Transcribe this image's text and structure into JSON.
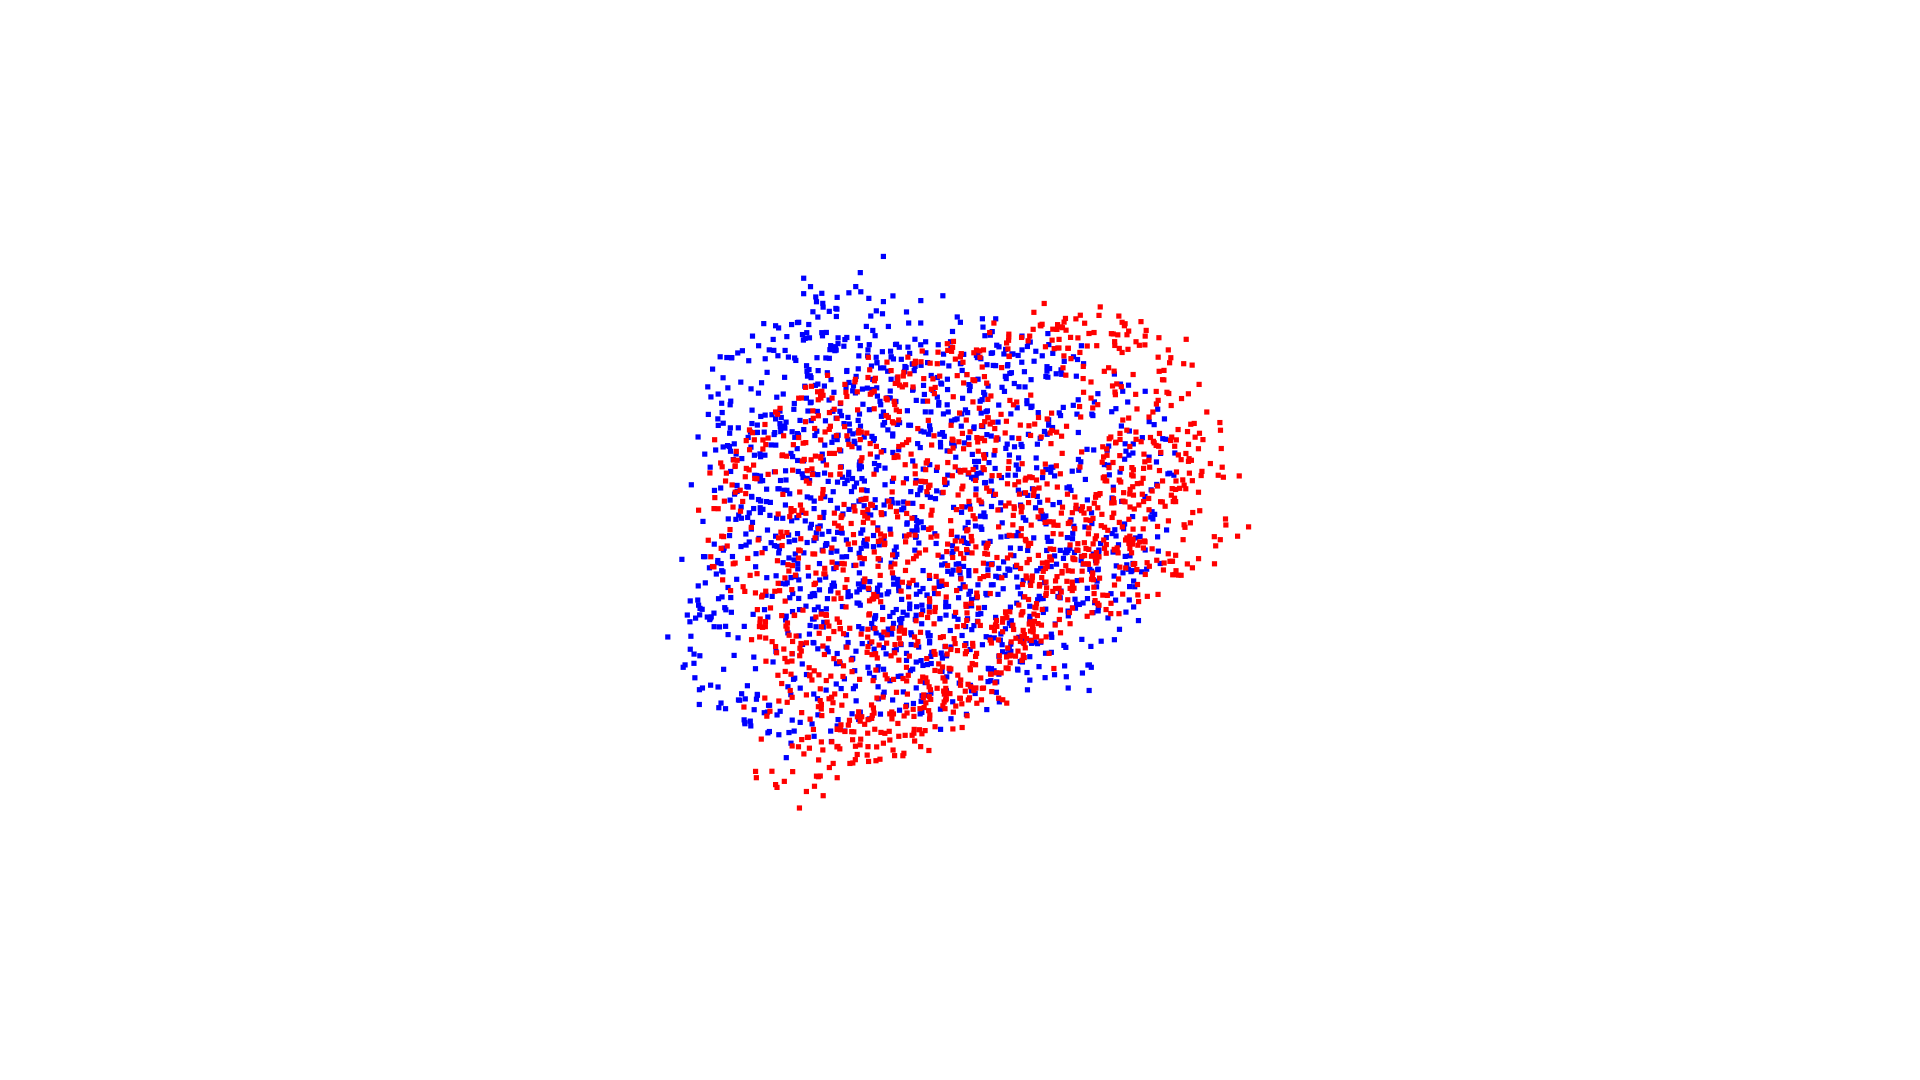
{
  "chart_data": {
    "type": "scatter",
    "title": "",
    "xlabel": "",
    "ylabel": "",
    "axes_visible": false,
    "grid": false,
    "legend": "none",
    "xlim": [
      0,
      1
    ],
    "ylim": [
      0,
      1
    ],
    "marker": "square",
    "series": [
      {
        "color": "#0000ff",
        "point_count_approx": 1450,
        "cloud_shape": "upper-left shell",
        "points": [
          [
            0.208,
            0.78
          ],
          [
            0.218,
            0.735
          ],
          [
            0.205,
            0.69
          ],
          [
            0.22,
            0.65
          ],
          [
            0.195,
            0.62
          ],
          [
            0.23,
            0.585
          ],
          [
            0.25,
            0.54
          ],
          [
            0.235,
            0.505
          ],
          [
            0.21,
            0.47
          ],
          [
            0.18,
            0.42
          ],
          [
            0.17,
            0.375
          ],
          [
            0.16,
            0.33
          ],
          [
            0.185,
            0.3
          ],
          [
            0.215,
            0.27
          ],
          [
            0.24,
            0.25
          ],
          [
            0.27,
            0.235
          ],
          [
            0.3,
            0.22
          ],
          [
            0.33,
            0.23
          ],
          [
            0.36,
            0.245
          ],
          [
            0.39,
            0.265
          ],
          [
            0.42,
            0.29
          ],
          [
            0.45,
            0.275
          ],
          [
            0.48,
            0.255
          ],
          [
            0.51,
            0.28
          ],
          [
            0.54,
            0.3
          ],
          [
            0.57,
            0.32
          ],
          [
            0.6,
            0.34
          ],
          [
            0.63,
            0.315
          ],
          [
            0.66,
            0.3
          ],
          [
            0.69,
            0.33
          ],
          [
            0.72,
            0.37
          ],
          [
            0.735,
            0.41
          ],
          [
            0.745,
            0.455
          ],
          [
            0.76,
            0.5
          ],
          [
            0.77,
            0.545
          ],
          [
            0.775,
            0.595
          ],
          [
            0.78,
            0.64
          ],
          [
            0.785,
            0.69
          ],
          [
            0.76,
            0.73
          ],
          [
            0.72,
            0.755
          ],
          [
            0.68,
            0.77
          ],
          [
            0.64,
            0.785
          ],
          [
            0.6,
            0.79
          ],
          [
            0.56,
            0.785
          ],
          [
            0.52,
            0.77
          ],
          [
            0.49,
            0.75
          ],
          [
            0.46,
            0.76
          ],
          [
            0.43,
            0.78
          ],
          [
            0.4,
            0.79
          ],
          [
            0.37,
            0.805
          ],
          [
            0.34,
            0.815
          ],
          [
            0.31,
            0.83
          ],
          [
            0.28,
            0.825
          ],
          [
            0.25,
            0.81
          ],
          [
            0.39,
            0.902
          ],
          [
            0.34,
            0.872
          ],
          [
            0.42,
            0.86
          ],
          [
            0.45,
            0.845
          ],
          [
            0.52,
            0.83
          ],
          [
            0.6,
            0.81
          ],
          [
            0.3,
            0.64
          ],
          [
            0.33,
            0.56
          ],
          [
            0.36,
            0.48
          ],
          [
            0.39,
            0.42
          ],
          [
            0.43,
            0.38
          ],
          [
            0.47,
            0.42
          ],
          [
            0.5,
            0.48
          ],
          [
            0.53,
            0.54
          ],
          [
            0.56,
            0.6
          ],
          [
            0.6,
            0.65
          ],
          [
            0.64,
            0.62
          ],
          [
            0.67,
            0.56
          ],
          [
            0.7,
            0.5
          ],
          [
            0.65,
            0.44
          ],
          [
            0.61,
            0.4
          ],
          [
            0.57,
            0.46
          ],
          [
            0.54,
            0.62
          ],
          [
            0.48,
            0.68
          ],
          [
            0.42,
            0.7
          ],
          [
            0.36,
            0.66
          ],
          [
            0.32,
            0.72
          ],
          [
            0.28,
            0.69
          ],
          [
            0.26,
            0.6
          ],
          [
            0.28,
            0.52
          ],
          [
            0.3,
            0.46
          ],
          [
            0.33,
            0.4
          ],
          [
            0.36,
            0.35
          ],
          [
            0.4,
            0.33
          ],
          [
            0.45,
            0.34
          ],
          [
            0.5,
            0.36
          ]
        ]
      },
      {
        "color": "#ff0000",
        "point_count_approx": 1450,
        "cloud_shape": "lower-right shell",
        "points": [
          [
            0.2,
            0.56
          ],
          [
            0.21,
            0.52
          ],
          [
            0.225,
            0.48
          ],
          [
            0.24,
            0.44
          ],
          [
            0.26,
            0.4
          ],
          [
            0.28,
            0.36
          ],
          [
            0.3,
            0.32
          ],
          [
            0.32,
            0.29
          ],
          [
            0.34,
            0.26
          ],
          [
            0.36,
            0.24
          ],
          [
            0.38,
            0.225
          ],
          [
            0.4,
            0.215
          ],
          [
            0.42,
            0.22
          ],
          [
            0.44,
            0.23
          ],
          [
            0.46,
            0.24
          ],
          [
            0.48,
            0.255
          ],
          [
            0.5,
            0.27
          ],
          [
            0.52,
            0.285
          ],
          [
            0.54,
            0.3
          ],
          [
            0.56,
            0.32
          ],
          [
            0.58,
            0.345
          ],
          [
            0.6,
            0.375
          ],
          [
            0.62,
            0.405
          ],
          [
            0.64,
            0.44
          ],
          [
            0.66,
            0.47
          ],
          [
            0.68,
            0.48
          ],
          [
            0.7,
            0.49
          ],
          [
            0.72,
            0.5
          ],
          [
            0.74,
            0.52
          ],
          [
            0.76,
            0.545
          ],
          [
            0.78,
            0.57
          ],
          [
            0.8,
            0.6
          ],
          [
            0.82,
            0.63
          ],
          [
            0.835,
            0.66
          ],
          [
            0.84,
            0.7
          ],
          [
            0.83,
            0.74
          ],
          [
            0.81,
            0.77
          ],
          [
            0.79,
            0.79
          ],
          [
            0.76,
            0.81
          ],
          [
            0.73,
            0.83
          ],
          [
            0.7,
            0.84
          ],
          [
            0.67,
            0.835
          ],
          [
            0.64,
            0.82
          ],
          [
            0.61,
            0.81
          ],
          [
            0.58,
            0.8
          ],
          [
            0.55,
            0.79
          ],
          [
            0.52,
            0.78
          ],
          [
            0.49,
            0.77
          ],
          [
            0.46,
            0.77
          ],
          [
            0.43,
            0.76
          ],
          [
            0.4,
            0.75
          ],
          [
            0.37,
            0.74
          ],
          [
            0.34,
            0.73
          ],
          [
            0.31,
            0.72
          ],
          [
            0.28,
            0.7
          ],
          [
            0.25,
            0.67
          ],
          [
            0.23,
            0.63
          ],
          [
            0.215,
            0.6
          ],
          [
            0.255,
            0.17
          ],
          [
            0.28,
            0.16
          ],
          [
            0.32,
            0.15
          ],
          [
            0.36,
            0.17
          ],
          [
            0.86,
            0.62
          ],
          [
            0.88,
            0.52
          ],
          [
            0.85,
            0.48
          ],
          [
            0.8,
            0.47
          ],
          [
            0.75,
            0.45
          ],
          [
            0.7,
            0.42
          ],
          [
            0.65,
            0.38
          ],
          [
            0.6,
            0.34
          ],
          [
            0.55,
            0.3
          ],
          [
            0.5,
            0.31
          ],
          [
            0.45,
            0.33
          ],
          [
            0.4,
            0.36
          ],
          [
            0.36,
            0.4
          ],
          [
            0.33,
            0.45
          ],
          [
            0.31,
            0.5
          ],
          [
            0.3,
            0.56
          ],
          [
            0.32,
            0.6
          ],
          [
            0.35,
            0.64
          ],
          [
            0.39,
            0.66
          ],
          [
            0.44,
            0.65
          ],
          [
            0.49,
            0.62
          ],
          [
            0.54,
            0.58
          ],
          [
            0.59,
            0.56
          ],
          [
            0.63,
            0.54
          ],
          [
            0.67,
            0.56
          ],
          [
            0.71,
            0.6
          ],
          [
            0.74,
            0.65
          ],
          [
            0.77,
            0.7
          ]
        ]
      }
    ]
  }
}
